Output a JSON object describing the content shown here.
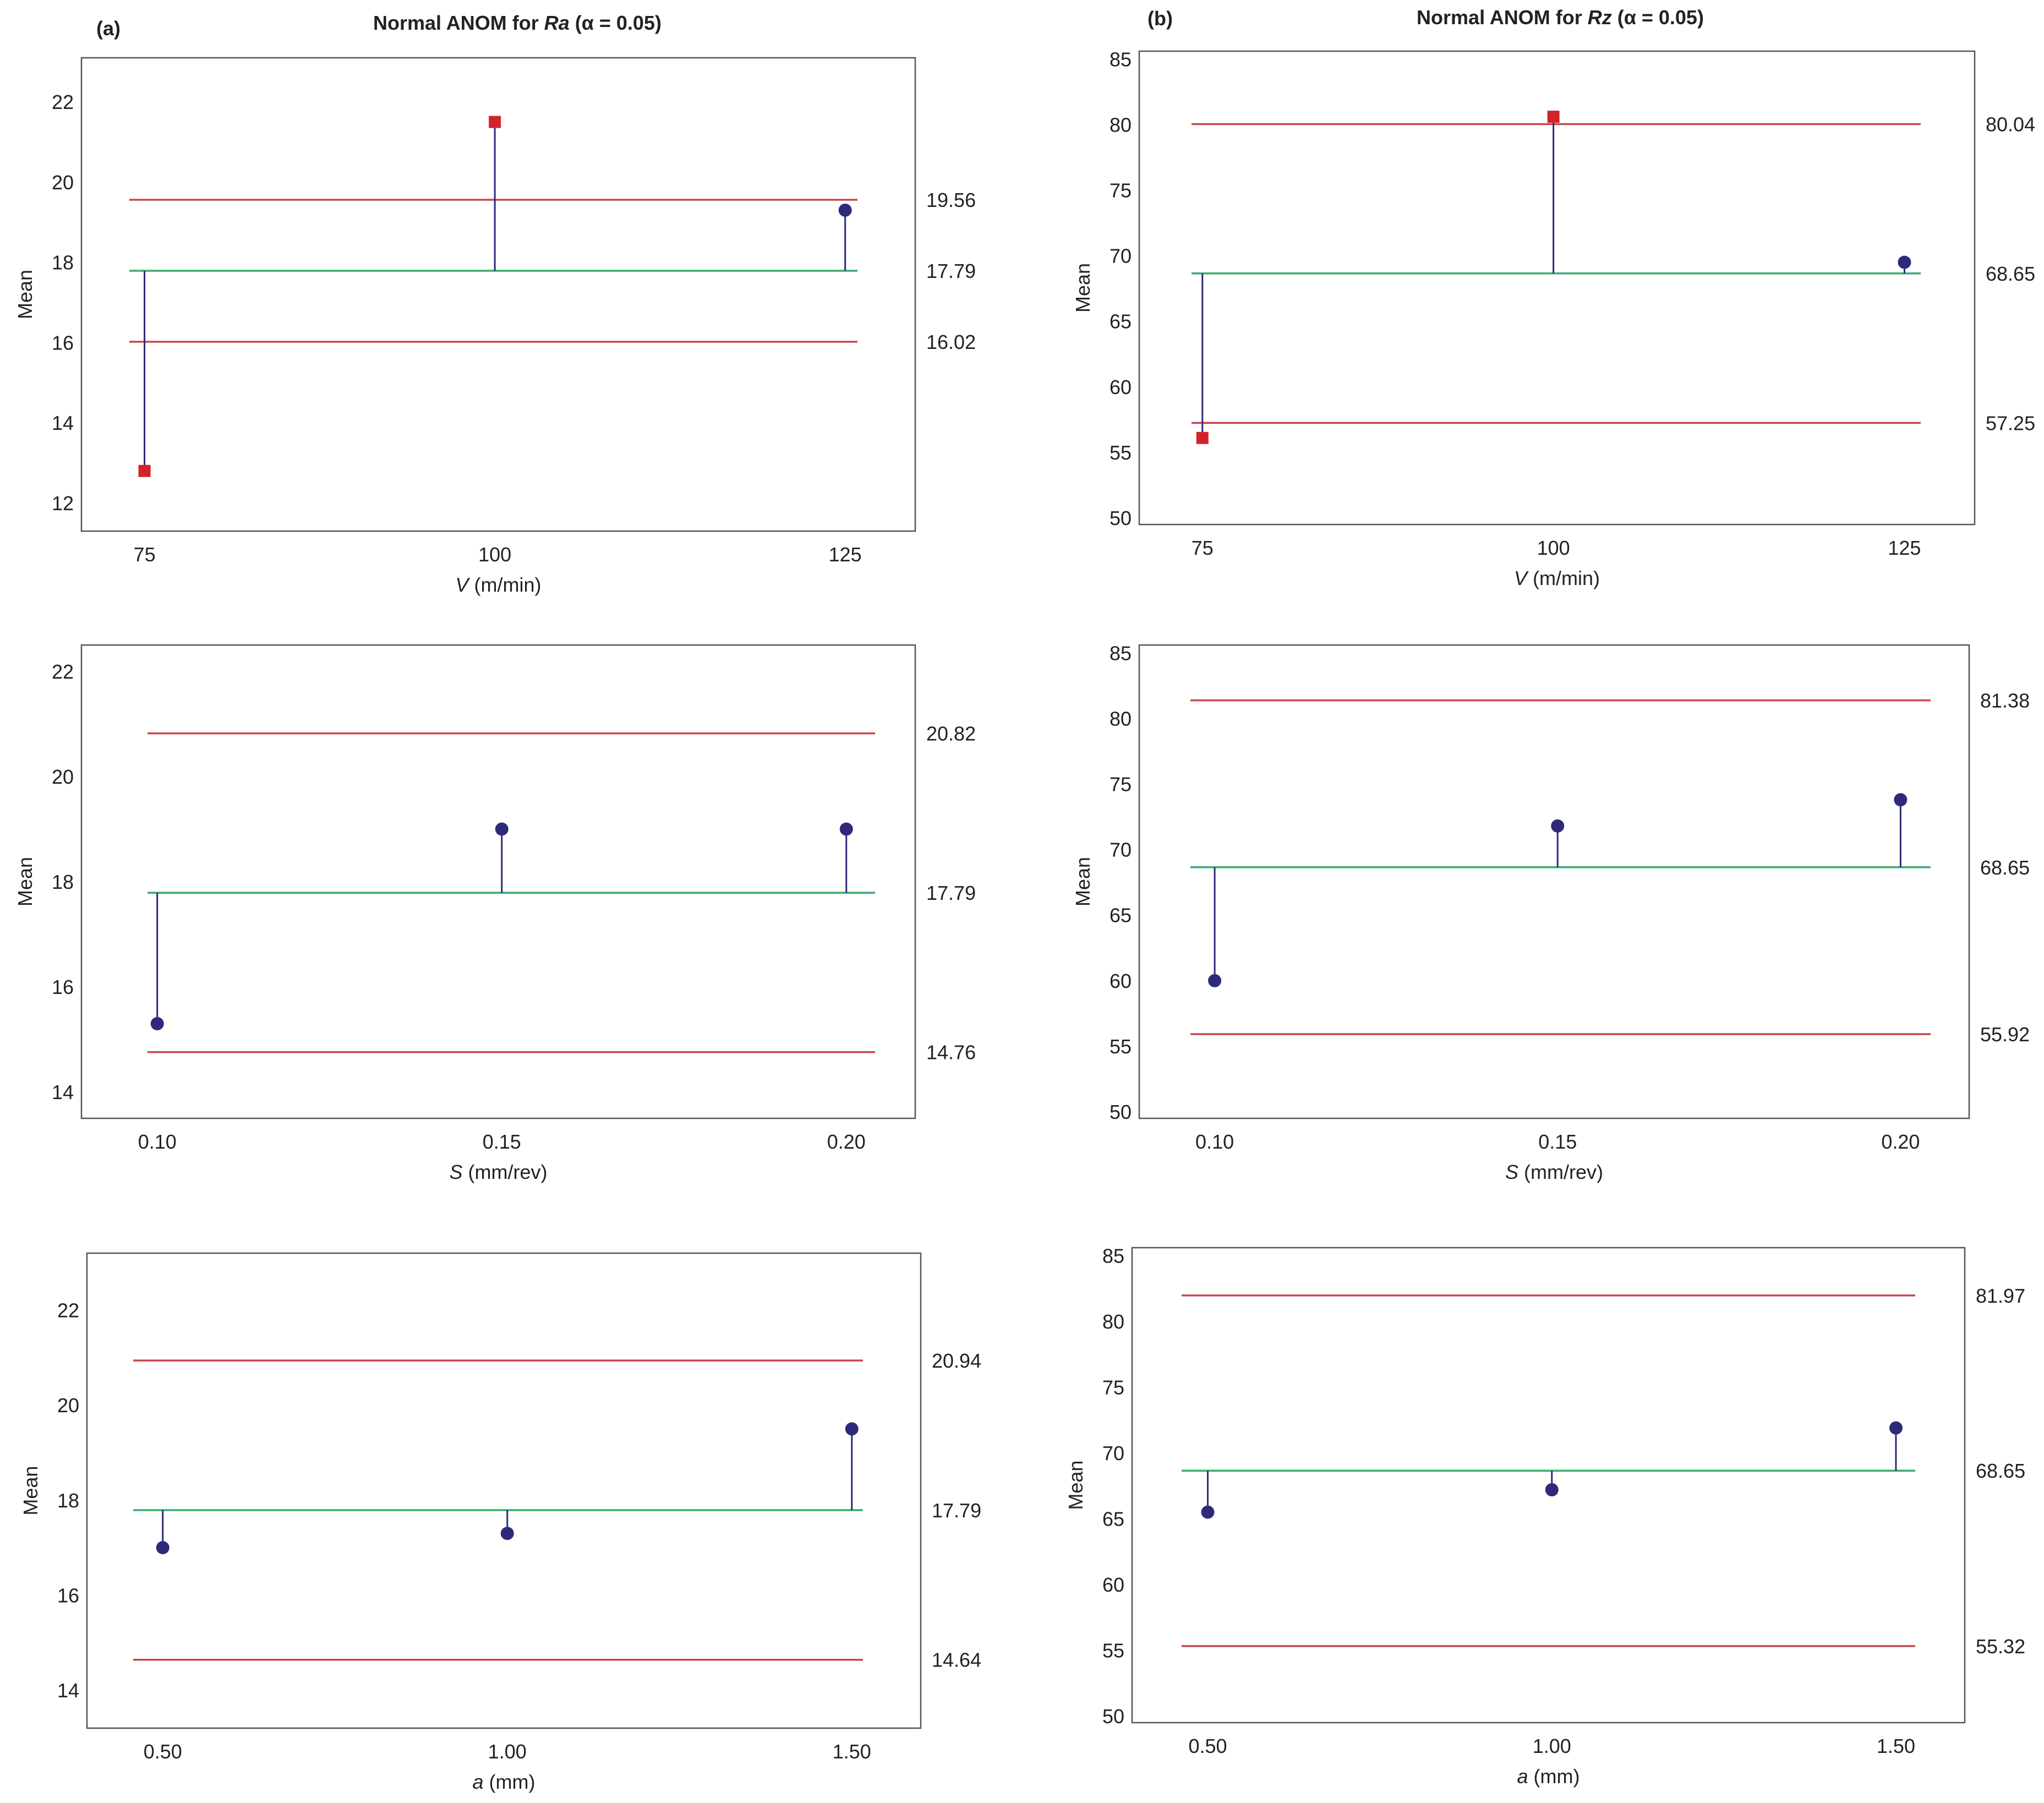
{
  "figure": {
    "colors": {
      "ucl": "#c8474c",
      "center": "#3aaa6e",
      "point": "#2e2a7a",
      "flag": "#d2232a",
      "axis": "#555555",
      "text": "#222222"
    },
    "panels": [
      {
        "letter": "(a)",
        "title_prefix": "Normal ANOM for ",
        "title_var": "Ra",
        "title_suffix": " (α = 0.05)"
      },
      {
        "letter": "(b)",
        "title_prefix": "Normal ANOM for ",
        "title_var": "Rz",
        "title_suffix": " (α = 0.05)"
      }
    ]
  },
  "chart_data": [
    {
      "type": "scatter",
      "panel": "a",
      "ylabel": "Mean",
      "xvar": "V",
      "xunit": " (m/min)",
      "ylim": [
        11.3,
        23.1
      ],
      "yticks": [
        12,
        14,
        16,
        18,
        20,
        22
      ],
      "xlim": [
        70.5,
        130
      ],
      "x": [
        75,
        100,
        125
      ],
      "xticklabels": [
        "75",
        "100",
        "125"
      ],
      "values": [
        12.8,
        21.5,
        19.3
      ],
      "markers": [
        "square",
        "square",
        "circle"
      ],
      "center": 17.79,
      "udl": 19.56,
      "ldl": 16.02,
      "limit_labels": {
        "udl": "19.56",
        "center": "17.79",
        "ldl": "16.02"
      }
    },
    {
      "type": "scatter",
      "panel": "b",
      "ylabel": "Mean",
      "xvar": "V",
      "xunit": " (m/min)",
      "ylim": [
        49.5,
        85.6
      ],
      "yticks": [
        50,
        55,
        60,
        65,
        70,
        75,
        80,
        85
      ],
      "xlim": [
        70.5,
        130
      ],
      "x": [
        75,
        100,
        125
      ],
      "xticklabels": [
        "75",
        "100",
        "125"
      ],
      "values": [
        56.1,
        80.6,
        69.5
      ],
      "markers": [
        "square",
        "square",
        "circle"
      ],
      "center": 68.65,
      "udl": 80.04,
      "ldl": 57.25,
      "limit_labels": {
        "udl": "80.04",
        "center": "68.65",
        "ldl": "57.25"
      }
    },
    {
      "type": "scatter",
      "panel": "a",
      "ylabel": "Mean",
      "xvar": "S",
      "xunit": " (mm/rev)",
      "ylim": [
        13.5,
        22.5
      ],
      "yticks": [
        14,
        16,
        18,
        20,
        22
      ],
      "xlim": [
        0.089,
        0.21
      ],
      "x": [
        0.1,
        0.15,
        0.2
      ],
      "xticklabels": [
        "0.10",
        "0.15",
        "0.20"
      ],
      "values": [
        15.3,
        19.0,
        19.0
      ],
      "markers": [
        "circle",
        "circle",
        "circle"
      ],
      "center": 17.79,
      "udl": 20.82,
      "ldl": 14.76,
      "limit_labels": {
        "udl": "20.82",
        "center": "17.79",
        "ldl": "14.76"
      }
    },
    {
      "type": "scatter",
      "panel": "b",
      "ylabel": "Mean",
      "xvar": "S",
      "xunit": " (mm/rev)",
      "ylim": [
        49.5,
        85.6
      ],
      "yticks": [
        50,
        55,
        60,
        65,
        70,
        75,
        80,
        85
      ],
      "xlim": [
        0.089,
        0.21
      ],
      "x": [
        0.1,
        0.15,
        0.2
      ],
      "xticklabels": [
        "0.10",
        "0.15",
        "0.20"
      ],
      "values": [
        60.0,
        71.8,
        73.8
      ],
      "markers": [
        "circle",
        "circle",
        "circle"
      ],
      "center": 68.65,
      "udl": 81.38,
      "ldl": 55.92,
      "limit_labels": {
        "udl": "81.38",
        "center": "68.65",
        "ldl": "55.92"
      }
    },
    {
      "type": "scatter",
      "panel": "a",
      "ylabel": "Mean",
      "xvar": "a",
      "xunit": " (mm)",
      "ylim": [
        13.2,
        23.2
      ],
      "yticks": [
        14,
        16,
        18,
        20,
        22
      ],
      "xlim": [
        0.39,
        1.6
      ],
      "x": [
        0.5,
        1.0,
        1.5
      ],
      "xticklabels": [
        "0.50",
        "1.00",
        "1.50"
      ],
      "values": [
        17.0,
        17.3,
        19.5
      ],
      "markers": [
        "circle",
        "circle",
        "circle"
      ],
      "center": 17.79,
      "udl": 20.94,
      "ldl": 14.64,
      "limit_labels": {
        "udl": "20.94",
        "center": "17.79",
        "ldl": "14.64"
      }
    },
    {
      "type": "scatter",
      "panel": "b",
      "ylabel": "Mean",
      "xvar": "a",
      "xunit": " (mm)",
      "ylim": [
        49.5,
        85.6
      ],
      "yticks": [
        50,
        55,
        60,
        65,
        70,
        75,
        80,
        85
      ],
      "xlim": [
        0.39,
        1.6
      ],
      "x": [
        0.5,
        1.0,
        1.5
      ],
      "xticklabels": [
        "0.50",
        "1.00",
        "1.50"
      ],
      "values": [
        65.5,
        67.2,
        71.9
      ],
      "markers": [
        "circle",
        "circle",
        "circle"
      ],
      "center": 68.65,
      "udl": 81.97,
      "ldl": 55.32,
      "limit_labels": {
        "udl": "81.97",
        "center": "68.65",
        "ldl": "55.32"
      }
    }
  ]
}
